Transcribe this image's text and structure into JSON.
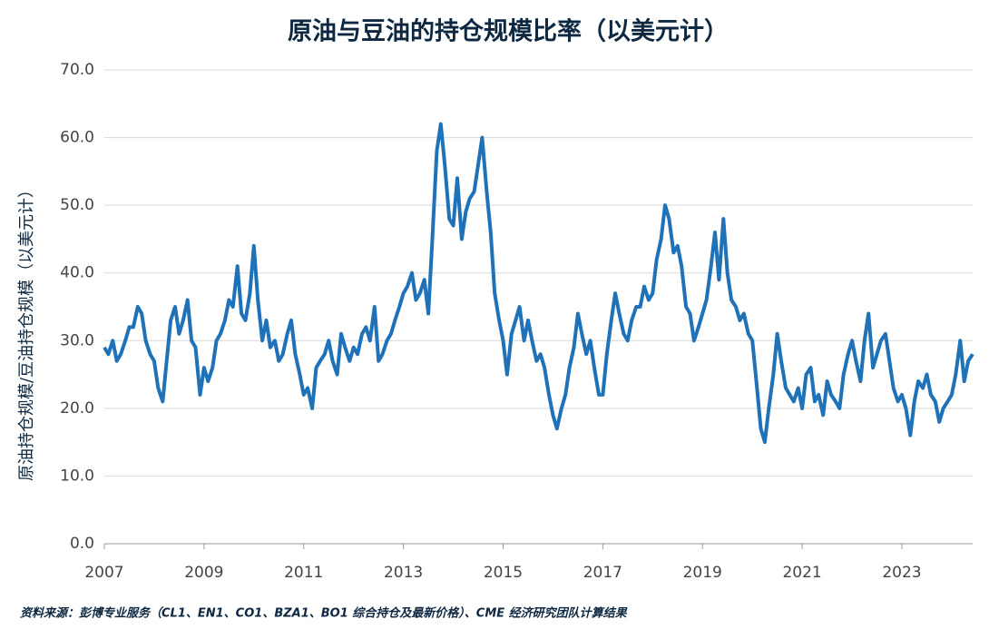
{
  "chart_data": {
    "type": "line",
    "title": "原油与豆油的持仓规模比率（以美元计）",
    "y_label": "原油持仓规模/豆油持仓规模（以美元计）",
    "source": "资料来源：彭博专业服务（CL1、EN1、CO1、BZA1、BO1 综合持仓及最新价格）、CME 经济研究团队计算结果",
    "xlim": [
      2007,
      2024.42
    ],
    "xticks": [
      2007,
      2009,
      2011,
      2013,
      2015,
      2017,
      2019,
      2021,
      2023
    ],
    "ylim": [
      0,
      70
    ],
    "yticks": [
      {
        "value": 0,
        "label": "0.0"
      },
      {
        "value": 10,
        "label": "10.0"
      },
      {
        "value": 20,
        "label": "20.0"
      },
      {
        "value": 30,
        "label": "30.0"
      },
      {
        "value": 40,
        "label": "40.0"
      },
      {
        "value": 50,
        "label": "50.0"
      },
      {
        "value": 60,
        "label": "60.0"
      },
      {
        "value": 70,
        "label": "70.0"
      }
    ],
    "grid": true,
    "x": [
      2007,
      2007.08,
      2007.17,
      2007.25,
      2007.33,
      2007.42,
      2007.5,
      2007.58,
      2007.67,
      2007.75,
      2007.83,
      2007.92,
      2008,
      2008.08,
      2008.17,
      2008.25,
      2008.33,
      2008.42,
      2008.5,
      2008.58,
      2008.67,
      2008.75,
      2008.83,
      2008.92,
      2009,
      2009.08,
      2009.17,
      2009.25,
      2009.33,
      2009.42,
      2009.5,
      2009.58,
      2009.67,
      2009.75,
      2009.83,
      2009.92,
      2010,
      2010.08,
      2010.17,
      2010.25,
      2010.33,
      2010.42,
      2010.5,
      2010.58,
      2010.67,
      2010.75,
      2010.83,
      2010.92,
      2011,
      2011.08,
      2011.17,
      2011.25,
      2011.33,
      2011.42,
      2011.5,
      2011.58,
      2011.67,
      2011.75,
      2011.83,
      2011.92,
      2012,
      2012.08,
      2012.17,
      2012.25,
      2012.33,
      2012.42,
      2012.5,
      2012.58,
      2012.67,
      2012.75,
      2012.83,
      2012.92,
      2013,
      2013.08,
      2013.17,
      2013.25,
      2013.33,
      2013.42,
      2013.5,
      2013.58,
      2013.67,
      2013.75,
      2013.83,
      2013.92,
      2014,
      2014.08,
      2014.17,
      2014.25,
      2014.33,
      2014.42,
      2014.5,
      2014.58,
      2014.67,
      2014.75,
      2014.83,
      2014.92,
      2015,
      2015.08,
      2015.17,
      2015.25,
      2015.33,
      2015.42,
      2015.5,
      2015.58,
      2015.67,
      2015.75,
      2015.83,
      2015.92,
      2016,
      2016.08,
      2016.17,
      2016.25,
      2016.33,
      2016.42,
      2016.5,
      2016.58,
      2016.67,
      2016.75,
      2016.83,
      2016.92,
      2017,
      2017.08,
      2017.17,
      2017.25,
      2017.33,
      2017.42,
      2017.5,
      2017.58,
      2017.67,
      2017.75,
      2017.83,
      2017.92,
      2018,
      2018.08,
      2018.17,
      2018.25,
      2018.33,
      2018.42,
      2018.5,
      2018.58,
      2018.67,
      2018.75,
      2018.83,
      2018.92,
      2019,
      2019.08,
      2019.17,
      2019.25,
      2019.33,
      2019.42,
      2019.5,
      2019.58,
      2019.67,
      2019.75,
      2019.83,
      2019.92,
      2020,
      2020.08,
      2020.17,
      2020.25,
      2020.33,
      2020.42,
      2020.5,
      2020.58,
      2020.67,
      2020.75,
      2020.83,
      2020.92,
      2021,
      2021.08,
      2021.17,
      2021.25,
      2021.33,
      2021.42,
      2021.5,
      2021.58,
      2021.67,
      2021.75,
      2021.83,
      2021.92,
      2022,
      2022.08,
      2022.17,
      2022.25,
      2022.33,
      2022.42,
      2022.5,
      2022.58,
      2022.67,
      2022.75,
      2022.83,
      2022.92,
      2023,
      2023.08,
      2023.17,
      2023.25,
      2023.33,
      2023.42,
      2023.5,
      2023.58,
      2023.67,
      2023.75,
      2023.83,
      2023.92,
      2024,
      2024.08,
      2024.17,
      2024.25,
      2024.33,
      2024.42
    ],
    "series": [
      {
        "color": "#1f72b8",
        "values": [
          29,
          28,
          30,
          27,
          28,
          30,
          32,
          32,
          35,
          34,
          30,
          28,
          27,
          23,
          21,
          27,
          33,
          35,
          31,
          33,
          36,
          30,
          29,
          22,
          26,
          24,
          26,
          30,
          31,
          33,
          36,
          35,
          41,
          34,
          33,
          37,
          44,
          36,
          30,
          33,
          29,
          30,
          27,
          28,
          31,
          33,
          28,
          25,
          22,
          23,
          20,
          26,
          27,
          28,
          30,
          27,
          25,
          31,
          29,
          27,
          29,
          28,
          31,
          32,
          30,
          35,
          27,
          28,
          30,
          31,
          33,
          35,
          37,
          38,
          40,
          36,
          37,
          39,
          34,
          45,
          58,
          62,
          56,
          48,
          47,
          54,
          45,
          49,
          51,
          52,
          56,
          60,
          52,
          46,
          37,
          33,
          30,
          25,
          31,
          33,
          35,
          30,
          33,
          30,
          27,
          28,
          26,
          22,
          19,
          17,
          20,
          22,
          26,
          29,
          34,
          31,
          28,
          30,
          26,
          22,
          22,
          28,
          33,
          37,
          34,
          31,
          30,
          33,
          35,
          35,
          38,
          36,
          37,
          42,
          45,
          50,
          48,
          43,
          44,
          41,
          35,
          34,
          30,
          32,
          34,
          36,
          41,
          46,
          39,
          48,
          40,
          36,
          35,
          33,
          34,
          31,
          30,
          24,
          17,
          15,
          20,
          25,
          31,
          27,
          23,
          22,
          21,
          23,
          20,
          25,
          26,
          21,
          22,
          19,
          24,
          22,
          21,
          20,
          25,
          28,
          30,
          27,
          24,
          30,
          34,
          26,
          28,
          30,
          31,
          27,
          23,
          21,
          22,
          20,
          16,
          21,
          24,
          23,
          25,
          22,
          21,
          18,
          20,
          21,
          22,
          25,
          30,
          24,
          27,
          28
        ]
      }
    ]
  }
}
